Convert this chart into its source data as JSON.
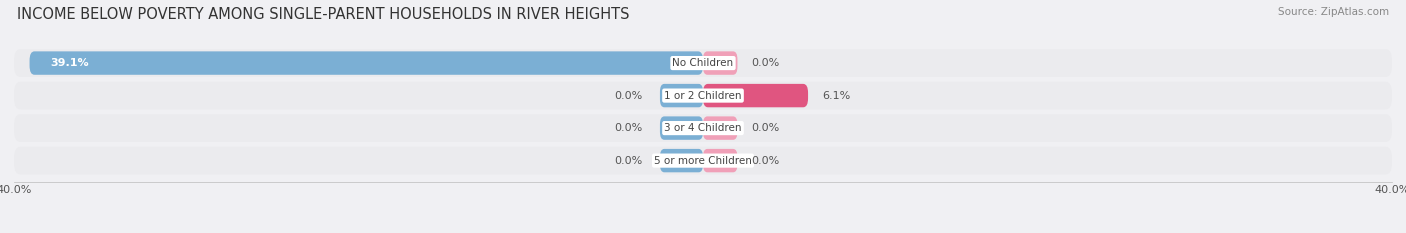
{
  "title": "INCOME BELOW POVERTY AMONG SINGLE-PARENT HOUSEHOLDS IN RIVER HEIGHTS",
  "source": "Source: ZipAtlas.com",
  "categories": [
    "No Children",
    "1 or 2 Children",
    "3 or 4 Children",
    "5 or more Children"
  ],
  "father_values": [
    39.1,
    0.0,
    0.0,
    0.0
  ],
  "mother_values": [
    0.0,
    6.1,
    0.0,
    0.0
  ],
  "father_color": "#7bafd4",
  "mother_color_light": "#f0a0b8",
  "mother_color_dark": "#e05580",
  "bar_bg_color": "#e2e5ea",
  "xlim": 40.0,
  "title_fontsize": 10.5,
  "source_fontsize": 7.5,
  "value_fontsize": 8,
  "category_fontsize": 7.5,
  "tick_fontsize": 8,
  "bar_height": 0.72,
  "row_bg_color": "#ebebee",
  "background_color": "#f0f0f3",
  "value_color_white": "#ffffff",
  "value_color_dark": "#555555",
  "category_label_color": "#444444"
}
